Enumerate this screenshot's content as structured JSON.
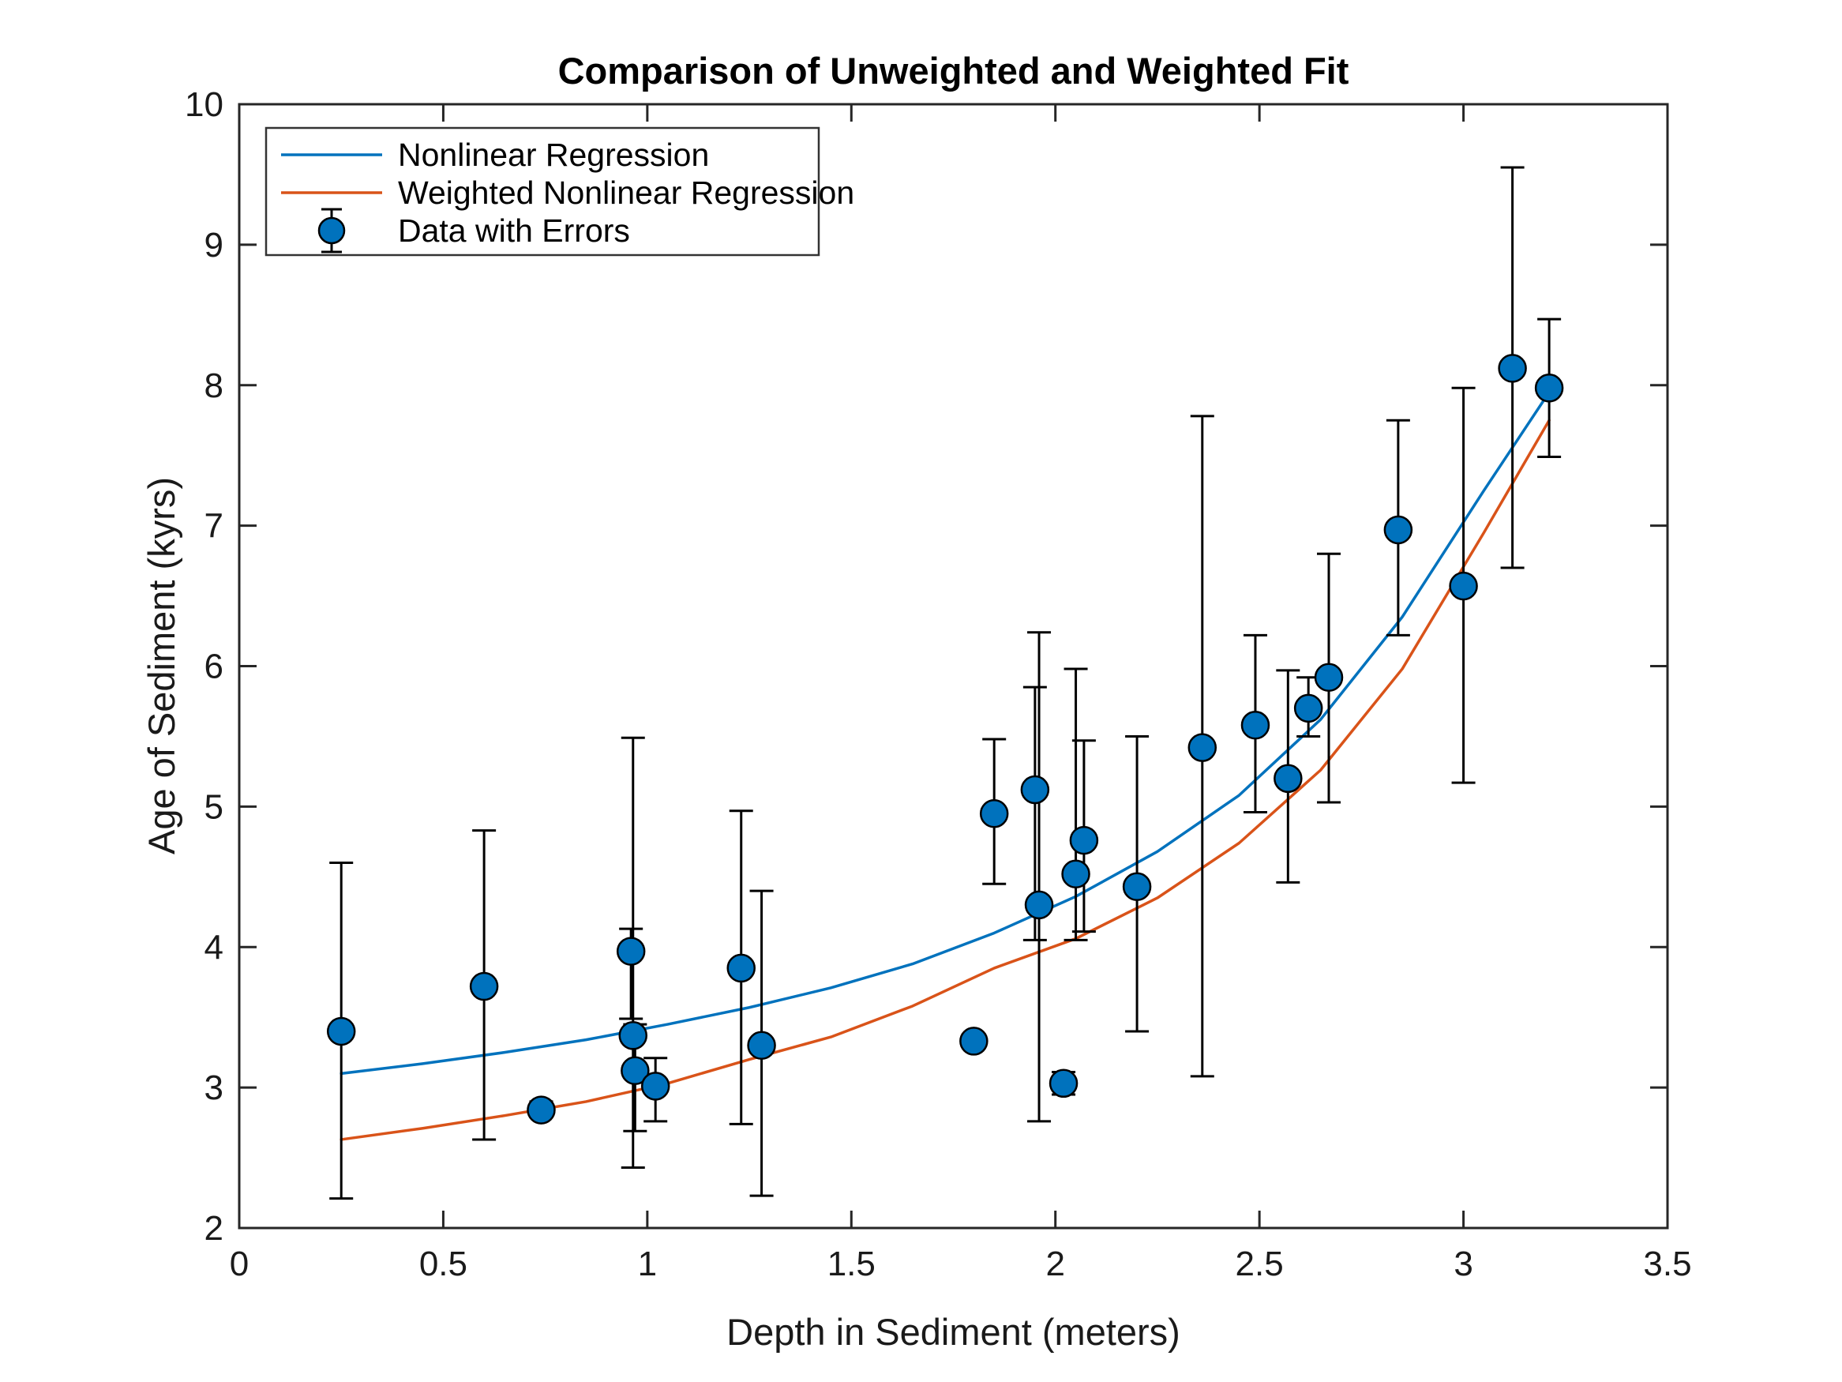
{
  "title": "Comparison of Unweighted and Weighted Fit",
  "axes": {
    "xlabel": "Depth in Sediment (meters)",
    "ylabel": "Age of Sediment (kyrs)",
    "xlim": [
      0,
      3.5
    ],
    "ylim": [
      2,
      10
    ],
    "x_ticks": [
      0,
      0.5,
      1,
      1.5,
      2,
      2.5,
      3,
      3.5
    ],
    "x_tick_labels": [
      "0",
      "0.5",
      "1",
      "1.5",
      "2",
      "2.5",
      "3",
      "3.5"
    ],
    "y_ticks": [
      2,
      3,
      4,
      5,
      6,
      7,
      8,
      9,
      10
    ],
    "y_tick_labels": [
      "2",
      "3",
      "4",
      "5",
      "6",
      "7",
      "8",
      "9",
      "10"
    ],
    "grid": false,
    "box": true,
    "tick_direction": "in"
  },
  "legend": {
    "position": "northwest",
    "items": [
      {
        "label": "Nonlinear Regression",
        "swatch": "line",
        "color": "#0072BD"
      },
      {
        "label": "Weighted Nonlinear Regression",
        "swatch": "line",
        "color": "#D95319"
      },
      {
        "label": "Data with Errors",
        "swatch": "errorbar-marker",
        "color": "#0072BD"
      }
    ]
  },
  "colors": {
    "blue_line": "#0072BD",
    "orange_line": "#D95319",
    "marker_fill": "#0072BD",
    "marker_edge": "#000000",
    "errorbar": "#000000",
    "spine": "#262626",
    "tick_label": "#1a1a1a",
    "legend_border": "#333333",
    "background": "#ffffff"
  },
  "chart_data": {
    "type": "scatter",
    "title": "Comparison of Unweighted and Weighted Fit",
    "xlabel": "Depth in Sediment (meters)",
    "ylabel": "Age of Sediment (kyrs)",
    "xlim": [
      0,
      3.5
    ],
    "ylim": [
      2,
      10
    ],
    "grid": false,
    "legend_position": "northwest",
    "series": [
      {
        "name": "Nonlinear Regression",
        "type": "line",
        "color": "#0072BD",
        "x": [
          0.25,
          0.45,
          0.65,
          0.85,
          1.05,
          1.25,
          1.45,
          1.65,
          1.85,
          2.05,
          2.25,
          2.45,
          2.65,
          2.85,
          3.05,
          3.21
        ],
        "y": [
          3.1,
          3.17,
          3.25,
          3.34,
          3.45,
          3.57,
          3.71,
          3.88,
          4.1,
          4.36,
          4.68,
          5.08,
          5.62,
          6.35,
          7.25,
          7.95
        ]
      },
      {
        "name": "Weighted Nonlinear Regression",
        "type": "line",
        "color": "#D95319",
        "x": [
          0.25,
          0.45,
          0.65,
          0.85,
          1.05,
          1.25,
          1.45,
          1.65,
          1.85,
          2.05,
          2.25,
          2.45,
          2.65,
          2.85,
          3.05,
          3.21
        ],
        "y": [
          2.63,
          2.71,
          2.8,
          2.9,
          3.03,
          3.2,
          3.36,
          3.58,
          3.85,
          4.06,
          4.35,
          4.74,
          5.26,
          5.98,
          6.95,
          7.75
        ]
      },
      {
        "name": "Data with Errors",
        "type": "scatter_errorbar",
        "color": "#0072BD",
        "points": [
          {
            "x": 0.25,
            "y": 3.4,
            "y_lo": 2.21,
            "y_hi": 4.6
          },
          {
            "x": 0.6,
            "y": 3.72,
            "y_lo": 2.63,
            "y_hi": 4.83
          },
          {
            "x": 0.74,
            "y": 2.84,
            "y_lo": 2.79,
            "y_hi": 2.9
          },
          {
            "x": 0.96,
            "y": 3.97,
            "y_lo": 3.49,
            "y_hi": 4.13
          },
          {
            "x": 0.965,
            "y": 3.37,
            "y_lo": 2.43,
            "y_hi": 5.49
          },
          {
            "x": 0.97,
            "y": 3.12,
            "y_lo": 2.69,
            "y_hi": 3.45
          },
          {
            "x": 1.02,
            "y": 3.01,
            "y_lo": 2.76,
            "y_hi": 3.21
          },
          {
            "x": 1.23,
            "y": 3.85,
            "y_lo": 2.74,
            "y_hi": 4.97
          },
          {
            "x": 1.28,
            "y": 3.3,
            "y_lo": 2.23,
            "y_hi": 4.4
          },
          {
            "x": 1.8,
            "y": 3.33,
            "y_lo": 3.28,
            "y_hi": 3.38
          },
          {
            "x": 1.85,
            "y": 4.95,
            "y_lo": 4.45,
            "y_hi": 5.48
          },
          {
            "x": 1.95,
            "y": 5.12,
            "y_lo": 4.05,
            "y_hi": 5.85
          },
          {
            "x": 1.96,
            "y": 4.3,
            "y_lo": 2.76,
            "y_hi": 6.24
          },
          {
            "x": 2.02,
            "y": 3.03,
            "y_lo": 2.95,
            "y_hi": 3.11
          },
          {
            "x": 2.05,
            "y": 4.52,
            "y_lo": 4.05,
            "y_hi": 5.98
          },
          {
            "x": 2.07,
            "y": 4.76,
            "y_lo": 4.11,
            "y_hi": 5.47
          },
          {
            "x": 2.2,
            "y": 4.43,
            "y_lo": 3.4,
            "y_hi": 5.5
          },
          {
            "x": 2.36,
            "y": 5.42,
            "y_lo": 3.08,
            "y_hi": 7.78
          },
          {
            "x": 2.49,
            "y": 5.58,
            "y_lo": 4.96,
            "y_hi": 6.22
          },
          {
            "x": 2.57,
            "y": 5.2,
            "y_lo": 4.46,
            "y_hi": 5.97
          },
          {
            "x": 2.62,
            "y": 5.7,
            "y_lo": 5.5,
            "y_hi": 5.92
          },
          {
            "x": 2.67,
            "y": 5.92,
            "y_lo": 5.03,
            "y_hi": 6.8
          },
          {
            "x": 2.84,
            "y": 6.97,
            "y_lo": 6.22,
            "y_hi": 7.75
          },
          {
            "x": 3.0,
            "y": 6.57,
            "y_lo": 5.17,
            "y_hi": 7.98
          },
          {
            "x": 3.12,
            "y": 8.12,
            "y_lo": 6.7,
            "y_hi": 9.55
          },
          {
            "x": 3.21,
            "y": 7.98,
            "y_lo": 7.49,
            "y_hi": 8.47
          }
        ]
      }
    ]
  }
}
